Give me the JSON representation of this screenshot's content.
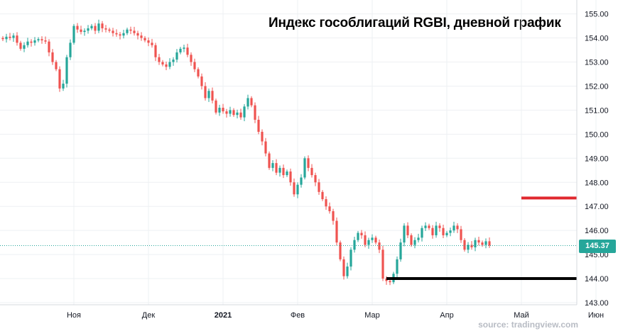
{
  "chart_data": {
    "type": "candlestick",
    "title": "Индекс гособлигаций RGBI, дневной график",
    "source": "source: tradingview.com",
    "y_axis": {
      "ticks": [
        "143.00",
        "144.00",
        "145.00",
        "146.00",
        "147.00",
        "148.00",
        "149.00",
        "150.00",
        "151.00",
        "152.00",
        "153.00",
        "154.00",
        "155.00"
      ],
      "range": [
        142.95,
        155.25
      ]
    },
    "x_axis": {
      "ticks": [
        {
          "label": "Ноя",
          "index": 20
        },
        {
          "label": "Дек",
          "index": 41
        },
        {
          "label": "2021",
          "index": 62,
          "bold": true
        },
        {
          "label": "Фев",
          "index": 83
        },
        {
          "label": "Мар",
          "index": 104
        },
        {
          "label": "Апр",
          "index": 125
        },
        {
          "label": "Май",
          "index": 146
        },
        {
          "label": "Июн",
          "index": 167
        }
      ]
    },
    "last_price": "145.37",
    "last_price_value": 145.37,
    "colors": {
      "up": "#26a69a",
      "down": "#ef5350",
      "grid": "#eef0f3",
      "last_price_line": "#26a69a",
      "resistance_line": "#e0282e",
      "support_line": "#000000"
    },
    "annotations": {
      "resistance_level": 147.35,
      "resistance_from_index": 146,
      "support_level": 144.0,
      "support_from_index": 108
    },
    "closes": [
      153.95,
      154.05,
      154.0,
      154.1,
      153.8,
      153.55,
      153.7,
      153.85,
      153.8,
      153.9,
      153.95,
      153.9,
      153.85,
      153.4,
      153.0,
      152.7,
      151.9,
      152.1,
      153.2,
      153.8,
      154.5,
      154.35,
      154.25,
      154.3,
      154.4,
      154.5,
      154.3,
      154.6,
      154.4,
      154.35,
      154.3,
      154.2,
      154.15,
      154.1,
      154.2,
      154.35,
      154.3,
      154.2,
      154.1,
      154.0,
      153.9,
      153.8,
      153.7,
      153.2,
      153.0,
      152.9,
      152.8,
      153.0,
      153.1,
      153.4,
      153.55,
      153.6,
      153.3,
      153.0,
      152.7,
      152.4,
      152.0,
      151.5,
      151.8,
      151.4,
      150.9,
      151.1,
      150.95,
      150.85,
      151.0,
      150.8,
      150.9,
      150.7,
      151.15,
      151.5,
      151.2,
      150.6,
      150.1,
      149.7,
      149.2,
      148.6,
      148.8,
      148.4,
      148.6,
      148.3,
      148.45,
      148.0,
      147.5,
      147.9,
      148.2,
      149.0,
      148.6,
      148.3,
      148.0,
      147.6,
      147.3,
      147.0,
      146.8,
      146.4,
      145.5,
      144.8,
      144.1,
      144.5,
      145.2,
      145.6,
      145.9,
      145.8,
      145.4,
      145.6,
      145.7,
      145.5,
      145.2,
      144.0,
      143.9,
      143.85,
      144.2,
      144.8,
      145.5,
      146.2,
      145.8,
      145.4,
      145.6,
      145.7,
      146.1,
      146.2,
      146.1,
      145.8,
      146.2,
      146.1,
      145.8,
      145.9,
      146.0,
      146.2,
      146.05,
      145.6,
      145.2,
      145.4,
      145.3,
      145.6,
      145.5,
      145.4,
      145.55,
      145.37
    ]
  }
}
